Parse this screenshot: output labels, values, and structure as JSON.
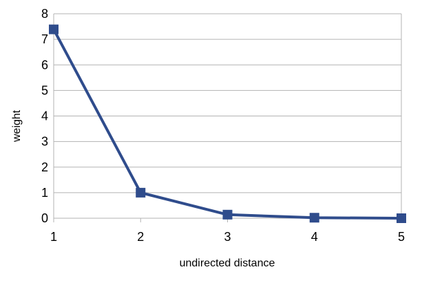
{
  "chart_data": {
    "type": "line",
    "title": "",
    "xlabel": "undirected distance",
    "ylabel": "weight",
    "x": [
      1,
      2,
      3,
      4,
      5
    ],
    "xticks": [
      "1",
      "2",
      "3",
      "4",
      "5"
    ],
    "xlim": [
      1,
      5
    ],
    "ylim": [
      0,
      8
    ],
    "yticks": [
      "0",
      "1",
      "2",
      "3",
      "4",
      "5",
      "6",
      "7",
      "8"
    ],
    "grid": "horizontal",
    "legend": "none",
    "series": [
      {
        "values": [
          7.39,
          1.0,
          0.14,
          0.02,
          0.0
        ],
        "color": "#2f4c8c",
        "marker": "square"
      }
    ]
  }
}
